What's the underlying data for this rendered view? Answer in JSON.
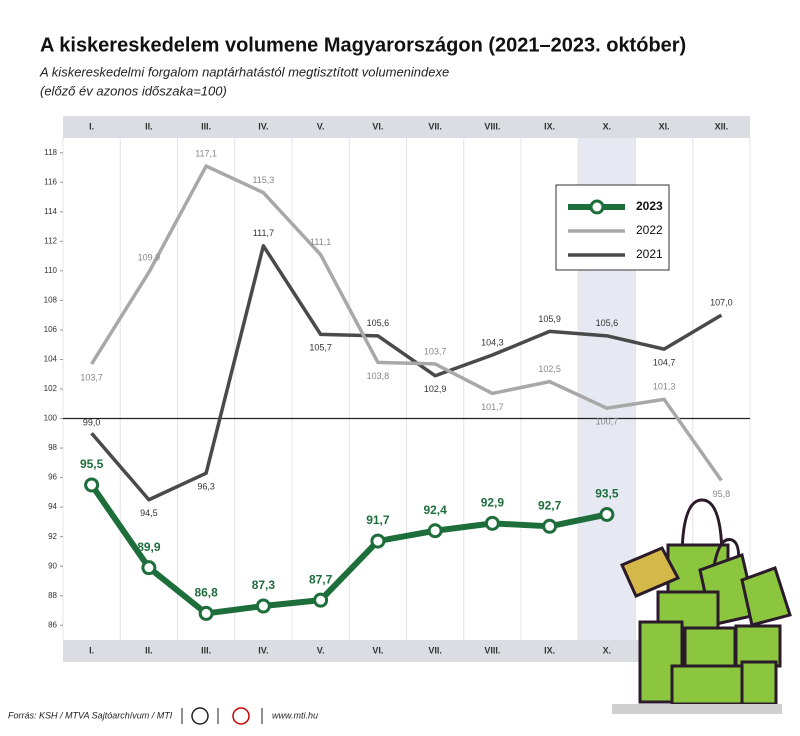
{
  "chart_data": {
    "type": "line",
    "title": "A kiskereskedelem volumene Magyarországon (2021–2023. október)",
    "subtitle": [
      "A kiskereskedelmi forgalom naptárhatástól megtisztított volumenindexe",
      "(előző év azonos időszaka=100)"
    ],
    "categories": [
      "I.",
      "II.",
      "III.",
      "IV.",
      "V.",
      "VI.",
      "VII.",
      "VIII.",
      "IX.",
      "X.",
      "XI.",
      "XII."
    ],
    "series": [
      {
        "name": "2023",
        "color": "#1e6e3c",
        "values": [
          95.5,
          89.9,
          86.8,
          87.3,
          87.7,
          91.7,
          92.4,
          92.9,
          92.7,
          93.5,
          null,
          null
        ],
        "value_labels": [
          "95,5",
          "89,9",
          "86,8",
          "87,3",
          "87,7",
          "91,7",
          "92,4",
          "92,9",
          "92,7",
          "93,5",
          null,
          null
        ]
      },
      {
        "name": "2022",
        "color": "#a8a8a8",
        "values": [
          103.7,
          109.9,
          117.1,
          115.3,
          111.1,
          103.8,
          103.7,
          101.7,
          102.5,
          100.7,
          101.3,
          95.8
        ],
        "value_labels": [
          "103,7",
          "109,9",
          "117,1",
          "115,3",
          "111,1",
          "103,8",
          "103,7",
          "101,7",
          "102,5",
          "100,7",
          "101,3",
          "95,8"
        ]
      },
      {
        "name": "2021",
        "color": "#4a4a4a",
        "values": [
          99.0,
          94.5,
          96.3,
          111.7,
          105.7,
          105.6,
          102.9,
          104.3,
          105.9,
          105.6,
          104.7,
          107.0
        ],
        "value_labels": [
          "99,0",
          "94,5",
          "96,3",
          "111,7",
          "105,7",
          "105,6",
          "102,9",
          "104,3",
          "105,9",
          "105,6",
          "104,7",
          "107,0"
        ]
      }
    ],
    "ylim": [
      85,
      119
    ],
    "yticks": [
      86,
      88,
      90,
      92,
      94,
      96,
      98,
      100,
      102,
      104,
      106,
      108,
      110,
      112,
      114,
      116,
      118
    ],
    "reference_line": 100,
    "highlight_index": 9,
    "source": "Forrás: KSH / MTVA Sajtóarchívum / MTI",
    "website": "www.mti.hu"
  }
}
